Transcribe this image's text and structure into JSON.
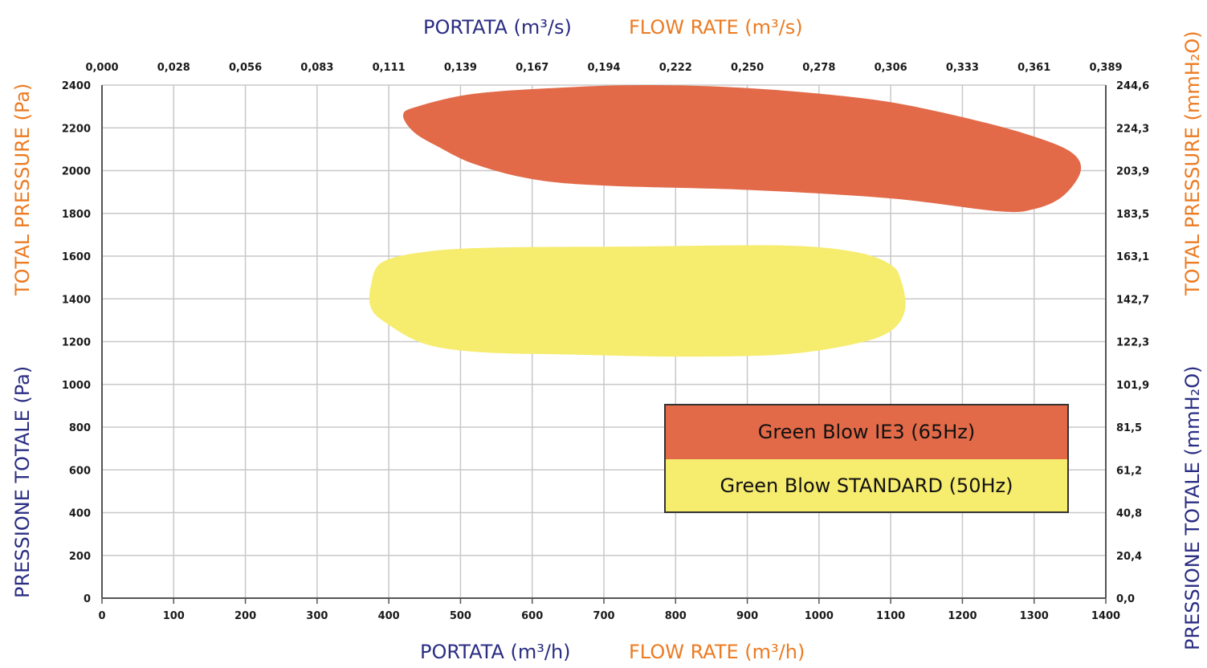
{
  "colors": {
    "blue_title": "#2b2d83",
    "orange_title": "#ec7b22",
    "ie3_fill": "#e26a49",
    "standard_fill": "#f6ec6e",
    "grid": "#c8c8c8"
  },
  "titles": {
    "top_it": "PORTATA (m³/s)",
    "top_en": "FLOW RATE (m³/s)",
    "bottom_it": "PORTATA (m³/h)",
    "bottom_en": "FLOW RATE (m³/h)",
    "left_en": "TOTAL PRESSURE (Pa)",
    "left_it": "PRESSIONE TOTALE (Pa)",
    "right_en": "TOTAL PRESSURE (mmH₂O)",
    "right_it": "PRESSIONE TOTALE (mmH₂O)"
  },
  "legend": {
    "ie3": "Green Blow IE3 (65Hz)",
    "standard": "Green Blow STANDARD (50Hz)"
  },
  "chart_data": {
    "type": "area",
    "xlim": [
      0,
      1400
    ],
    "ylim": [
      0,
      2400
    ],
    "grid": true,
    "legend_position": "bottom-right",
    "x_ticks": [
      "0",
      "100",
      "200",
      "300",
      "400",
      "500",
      "600",
      "700",
      "800",
      "900",
      "1000",
      "1100",
      "1200",
      "1300",
      "1400"
    ],
    "x2_ticks": [
      "0,000",
      "0,028",
      "0,056",
      "0,083",
      "0,111",
      "0,139",
      "0,167",
      "0,194",
      "0,222",
      "0,250",
      "0,278",
      "0,306",
      "0,333",
      "0,361",
      "0,389"
    ],
    "y_ticks": [
      "0",
      "200",
      "400",
      "600",
      "800",
      "1000",
      "1200",
      "1400",
      "1600",
      "1800",
      "2000",
      "2200",
      "2400"
    ],
    "y2_ticks": [
      "0,0",
      "20,4",
      "40,8",
      "61,2",
      "81,5",
      "101,9",
      "122,3",
      "142,7",
      "163,1",
      "183,5",
      "203,9",
      "224,3",
      "244,6"
    ],
    "series": [
      {
        "name": "Green Blow IE3 (65Hz)",
        "color": "#e26a49",
        "outline": [
          [
            420,
            2260
          ],
          [
            440,
            2300
          ],
          [
            520,
            2360
          ],
          [
            650,
            2390
          ],
          [
            760,
            2400
          ],
          [
            880,
            2390
          ],
          [
            1000,
            2360
          ],
          [
            1100,
            2320
          ],
          [
            1200,
            2250
          ],
          [
            1290,
            2170
          ],
          [
            1350,
            2090
          ],
          [
            1365,
            2000
          ],
          [
            1340,
            1880
          ],
          [
            1300,
            1820
          ],
          [
            1250,
            1810
          ],
          [
            1100,
            1870
          ],
          [
            900,
            1910
          ],
          [
            700,
            1930
          ],
          [
            600,
            1960
          ],
          [
            520,
            2030
          ],
          [
            470,
            2110
          ],
          [
            435,
            2180
          ],
          [
            420,
            2260
          ]
        ]
      },
      {
        "name": "Green Blow STANDARD (50Hz)",
        "color": "#f6ec6e",
        "outline": [
          [
            375,
            1460
          ],
          [
            390,
            1570
          ],
          [
            450,
            1620
          ],
          [
            550,
            1640
          ],
          [
            750,
            1645
          ],
          [
            950,
            1650
          ],
          [
            1050,
            1620
          ],
          [
            1100,
            1560
          ],
          [
            1115,
            1480
          ],
          [
            1120,
            1350
          ],
          [
            1100,
            1250
          ],
          [
            1050,
            1190
          ],
          [
            950,
            1140
          ],
          [
            800,
            1130
          ],
          [
            650,
            1140
          ],
          [
            530,
            1150
          ],
          [
            450,
            1190
          ],
          [
            395,
            1290
          ],
          [
            375,
            1360
          ],
          [
            375,
            1460
          ]
        ]
      }
    ]
  }
}
